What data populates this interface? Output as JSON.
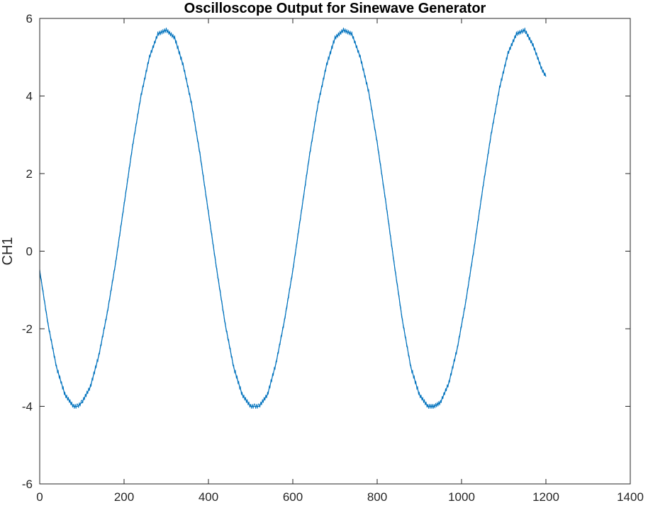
{
  "chart_data": {
    "type": "line",
    "title": "Oscilloscope Output for Sinewave Generator",
    "xlabel": "",
    "ylabel": "CH1",
    "xlim": [
      0,
      1400
    ],
    "ylim": [
      -6,
      6
    ],
    "x_ticks": [
      0,
      200,
      400,
      600,
      800,
      1000,
      1200,
      1400
    ],
    "y_ticks": [
      -6,
      -4,
      -2,
      0,
      2,
      4,
      6
    ],
    "x_tick_labels": [
      "0",
      "200",
      "400",
      "600",
      "800",
      "1000",
      "1200",
      "1400"
    ],
    "y_tick_labels": [
      "-6",
      "-4",
      "-2",
      "0",
      "2",
      "4",
      "6"
    ],
    "grid": false,
    "legend": "none",
    "series": [
      {
        "color": "#0072BD",
        "x": [
          0,
          20,
          40,
          60,
          80,
          90,
          100,
          120,
          140,
          160,
          180,
          200,
          220,
          240,
          260,
          280,
          300,
          320,
          340,
          360,
          380,
          400,
          420,
          440,
          460,
          480,
          500,
          510,
          520,
          540,
          560,
          580,
          600,
          620,
          640,
          660,
          680,
          700,
          720,
          740,
          760,
          780,
          800,
          820,
          840,
          860,
          880,
          900,
          920,
          935,
          950,
          970,
          990,
          1010,
          1030,
          1050,
          1070,
          1090,
          1110,
          1130,
          1150,
          1170,
          1190,
          1200
        ],
        "y": [
          -0.5,
          -1.9,
          -3.0,
          -3.7,
          -4.0,
          -4.0,
          -3.9,
          -3.5,
          -2.7,
          -1.6,
          -0.3,
          1.2,
          2.7,
          4.0,
          5.0,
          5.6,
          5.7,
          5.5,
          4.8,
          3.8,
          2.5,
          1.0,
          -0.5,
          -1.9,
          -3.0,
          -3.7,
          -4.0,
          -4.0,
          -4.0,
          -3.7,
          -2.9,
          -1.8,
          -0.5,
          1.0,
          2.5,
          3.8,
          4.8,
          5.5,
          5.7,
          5.6,
          5.0,
          4.1,
          2.8,
          1.3,
          -0.3,
          -1.8,
          -3.0,
          -3.7,
          -4.0,
          -4.0,
          -3.9,
          -3.4,
          -2.5,
          -1.3,
          0.1,
          1.6,
          3.0,
          4.2,
          5.1,
          5.6,
          5.7,
          5.3,
          4.7,
          4.5
        ]
      }
    ]
  }
}
